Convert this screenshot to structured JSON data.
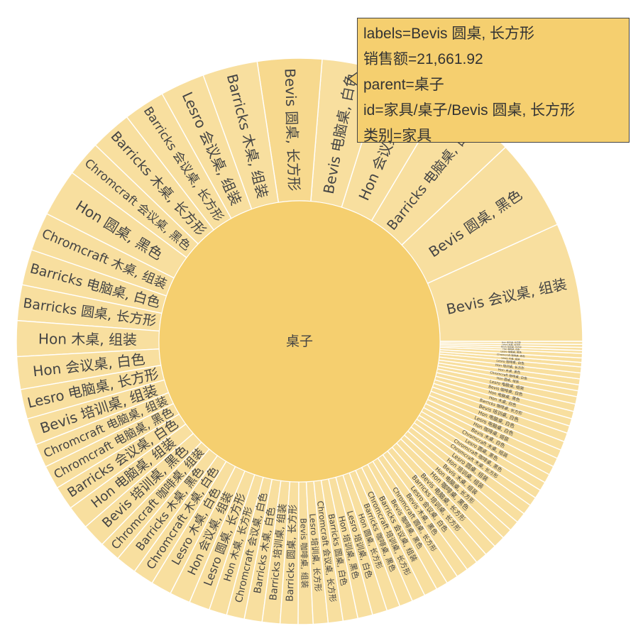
{
  "chart_data": {
    "type": "sunburst",
    "root": {
      "label": "桌子"
    },
    "colors": {
      "root": "#f5cf6f",
      "leaf": "#f8df9f",
      "hover": "#f7d98e",
      "tooltip_bg": "#f5cf6f"
    },
    "leaves": [
      {
        "label": "Bevis 会议桌, 组装",
        "value": 40
      },
      {
        "label": "Bevis 圆桌, 黑色",
        "value": 31
      },
      {
        "label": "Barricks 电脑桌, 白色",
        "value": 26
      },
      {
        "label": "Hon 会议桌, 组装",
        "value": 22
      },
      {
        "label": "Bevis 电脑桌, 白色",
        "value": 21
      },
      {
        "label": "Bevis 圆桌, 长方形",
        "value": 21.66
      },
      {
        "label": "Barricks 木桌, 组装",
        "value": 18.5
      },
      {
        "label": "Lesro 会议桌, 组装",
        "value": 15
      },
      {
        "label": "Barricks 会议桌, 长方形",
        "value": 14
      },
      {
        "label": "Barricks 木桌, 长方形",
        "value": 14
      },
      {
        "label": "Chromcraft 会议桌, 黑色",
        "value": 12
      },
      {
        "label": "Hon 圆桌, 黑色",
        "value": 16
      },
      {
        "label": "Chromcraft 木桌, 组装",
        "value": 13
      },
      {
        "label": "Barricks 电脑桌, 白色",
        "value": 12
      },
      {
        "label": "Barricks 圆桌, 长方形",
        "value": 12
      },
      {
        "label": "Hon 木桌, 组装",
        "value": 12
      },
      {
        "label": "Hon 会议桌, 白色",
        "value": 11
      },
      {
        "label": "Lesro 电脑桌, 长方形",
        "value": 10
      },
      {
        "label": "Bevis 培训桌, 组装",
        "value": 9
      },
      {
        "label": "Chromcraft 电脑桌, 组装",
        "value": 8
      },
      {
        "label": "Chromcraft 电脑桌, 黑色",
        "value": 8
      },
      {
        "label": "Barricks 会议桌, 白色",
        "value": 8
      },
      {
        "label": "Hon 电脑桌, 组装",
        "value": 8
      },
      {
        "label": "Bevis 培训桌, 黑色",
        "value": 8
      },
      {
        "label": "Chromcraft 咖啡桌, 组装",
        "value": 7
      },
      {
        "label": "Barricks 木桌, 黑色",
        "value": 7
      },
      {
        "label": "Chromcraft 木桌, 白色",
        "value": 7
      },
      {
        "label": "Lesro 木桌, 白色",
        "value": 7
      },
      {
        "label": "Hon 会议桌, 组装",
        "value": 7
      },
      {
        "label": "Lesro 圆桌, 长方形",
        "value": 7
      },
      {
        "label": "Hon 木桌, 长方形",
        "value": 6
      },
      {
        "label": "Chromcraft 会议桌, 白色",
        "value": 6
      },
      {
        "label": "Barricks 木桌, 白色",
        "value": 6
      },
      {
        "label": "Barricks 培训桌, 组装",
        "value": 6
      },
      {
        "label": "Barricks 圆桌, 长方形",
        "value": 6
      },
      {
        "label": "Bevis 咖啡桌, 组装",
        "value": 5
      },
      {
        "label": "Lesro 培训桌, 长方形",
        "value": 5
      },
      {
        "label": "Chromcraft 会议桌, 长方形",
        "value": 5
      },
      {
        "label": "Barricks 圆桌, 白色",
        "value": 5
      },
      {
        "label": "Hon 培训桌, 黑色",
        "value": 5
      },
      {
        "label": "Lesro 培训桌, 白色",
        "value": 5
      },
      {
        "label": "Hon 圆桌, 长方形",
        "value": 4.5
      },
      {
        "label": "Barricks 咖啡桌, 黑色",
        "value": 4.5
      },
      {
        "label": "Chromcraft 培训桌, 长方形",
        "value": 4.5
      },
      {
        "label": "Barricks 会议桌, 组装",
        "value": 4.5
      },
      {
        "label": "Bevis 咖啡桌, 黑色",
        "value": 4
      },
      {
        "label": "Chromcraft 圆桌, 长方形",
        "value": 4
      },
      {
        "label": "Bevis 木桌, 黑色",
        "value": 4
      },
      {
        "label": "Lesro 会议桌, 白色",
        "value": 4
      },
      {
        "label": "Barricks 培训桌, 长方形",
        "value": 4
      },
      {
        "label": "Bevis 电脑桌, 长方形",
        "value": 4
      },
      {
        "label": "Hon 咖啡桌, 黑色",
        "value": 4
      },
      {
        "label": "Hon 电脑桌, 长方形",
        "value": 3.5
      },
      {
        "label": "Bevis 木桌, 组装",
        "value": 3.5
      },
      {
        "label": "Hon 培训桌, 组装",
        "value": 3.5
      },
      {
        "label": "Lesro 圆桌, 组装",
        "value": 3.5
      },
      {
        "label": "Chromcraft 木桌, 长方形",
        "value": 3
      },
      {
        "label": "Chromcraft 咖啡桌, 黑色",
        "value": 3
      },
      {
        "label": "Lesro 圆桌, 黑色",
        "value": 3
      },
      {
        "label": "Chromcraft 木桌, 组装",
        "value": 3
      },
      {
        "label": "Bevis 木桌, 白色",
        "value": 3
      },
      {
        "label": "Hon 咖啡桌, 组装",
        "value": 3
      },
      {
        "label": "Lesro 电脑桌, 白色",
        "value": 3
      },
      {
        "label": "Hon 电脑桌, 白色",
        "value": 3
      },
      {
        "label": "Bevis 培训桌, 白色",
        "value": 3
      },
      {
        "label": "Barricks 咖啡桌, 长方形",
        "value": 2.5
      },
      {
        "label": "Hon 木桌, 白色",
        "value": 2.5
      },
      {
        "label": "Hon 电脑桌, 黑色",
        "value": 2.5
      },
      {
        "label": "Bevis 咖啡桌, 白色",
        "value": 2.5
      },
      {
        "label": "Lesro 电脑桌, 组装",
        "value": 2.5
      },
      {
        "label": "Hon 圆桌, 组装",
        "value": 2
      },
      {
        "label": "Chromcraft 咖啡桌, 白色",
        "value": 2
      },
      {
        "label": "Hon 木桌, 黑色",
        "value": 2
      },
      {
        "label": "Hon 培训桌, 长方形",
        "value": 2
      },
      {
        "label": "Lesro 咖啡桌, 白色",
        "value": 2
      },
      {
        "label": "Lesro 木桌, 组装",
        "value": 1.5
      },
      {
        "label": "Chromcraft 咖啡桌, 黑色",
        "value": 1.5
      },
      {
        "label": "Lesro 电脑桌, 黑色",
        "value": 1.5
      },
      {
        "label": "Hon 咖啡桌, 白色",
        "value": 1
      },
      {
        "label": "Bevis 培训桌, 长方形",
        "value": 1
      },
      {
        "label": "Lesro 木桌, 长方形",
        "value": 1
      },
      {
        "label": "Hon 会议桌, 长方形",
        "value": 1
      }
    ]
  },
  "tooltip": {
    "lines": [
      "labels=Bevis 圆桌, 长方形",
      "销售额=21,661.92",
      "parent=桌子",
      "id=家具/桌子/Bevis 圆桌, 长方形",
      "类别=家具"
    ]
  }
}
